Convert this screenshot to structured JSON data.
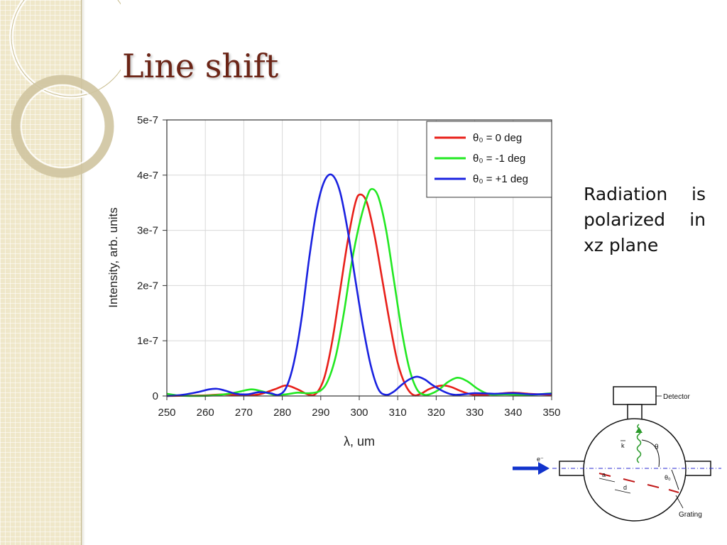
{
  "slide": {
    "title": "Line shift"
  },
  "text_block": {
    "line1": [
      "Radiation",
      "is"
    ],
    "line2": [
      "polarized",
      "in"
    ],
    "line3": "xz plane"
  },
  "diagram": {
    "detector_label": "Detector",
    "grating_label": "Grating",
    "electron_label": "e⁻",
    "k_label": "k",
    "theta_label": "θ",
    "theta0_label": "θ₀",
    "a_label": "a",
    "d_label": "d"
  },
  "chart_data": {
    "type": "line",
    "title": "",
    "xlabel": "λ, um",
    "ylabel": "Intensity, arb. units",
    "xlim": [
      250,
      350
    ],
    "ylim": [
      0,
      5e-07
    ],
    "xticks": [
      250,
      260,
      270,
      280,
      290,
      300,
      310,
      320,
      330,
      340,
      350
    ],
    "xtick_labels": [
      "250",
      "260",
      "270",
      "280",
      "290",
      "300",
      "310",
      "320",
      "330",
      "340",
      "350"
    ],
    "yticks": [
      0,
      1e-07,
      2e-07,
      3e-07,
      4e-07,
      5e-07
    ],
    "ytick_labels": [
      "0",
      "1e-7",
      "2e-7",
      "3e-7",
      "4e-7",
      "5e-7"
    ],
    "grid": true,
    "legend_position": "top-right",
    "series": [
      {
        "name": "θ₀ = 0 deg",
        "color": "#e8201a",
        "x": [
          250,
          255,
          260,
          265,
          270,
          274,
          278,
          281,
          284,
          287,
          289,
          291,
          293,
          295,
          297,
          299,
          300.3,
          302,
          304,
          306,
          308,
          310,
          312,
          314,
          316,
          318,
          320,
          322,
          324,
          326,
          328,
          330,
          333,
          336,
          340,
          344,
          350
        ],
        "y": [
          0,
          5e-10,
          1e-09,
          3e-09,
          1e-09,
          3e-09,
          1.2e-08,
          1.9e-08,
          1.2e-08,
          2e-09,
          6e-09,
          3.5e-08,
          1e-07,
          1.9e-07,
          2.8e-07,
          3.5e-07,
          3.65e-07,
          3.5e-07,
          2.9e-07,
          2.1e-07,
          1.3e-07,
          6e-08,
          2e-08,
          2e-09,
          4e-09,
          1.2e-08,
          1.7e-08,
          1.9e-08,
          1.6e-08,
          1e-08,
          5e-09,
          2e-09,
          2e-09,
          4e-09,
          6e-09,
          4e-09,
          2e-09
        ]
      },
      {
        "name": "θ₀ = -1 deg",
        "color": "#22e822",
        "x": [
          250,
          253,
          257,
          262,
          266,
          269,
          272,
          275,
          278,
          281,
          284,
          287,
          290,
          292,
          294,
          296,
          298,
          300,
          302,
          303.3,
          305,
          307,
          309,
          311,
          313,
          315,
          317,
          319,
          321,
          323,
          325.5,
          328,
          331,
          334,
          338,
          344,
          350
        ],
        "y": [
          4e-09,
          1e-09,
          0,
          1e-09,
          4e-09,
          8e-09,
          1.2e-08,
          8e-09,
          2e-09,
          3e-09,
          6e-09,
          5e-09,
          1e-08,
          3e-08,
          7.5e-08,
          1.5e-07,
          2.4e-07,
          3.1e-07,
          3.6e-07,
          3.75e-07,
          3.6e-07,
          3e-07,
          2.1e-07,
          1.2e-07,
          5e-08,
          1.2e-08,
          2e-09,
          5e-09,
          1.3e-08,
          2.5e-08,
          3.3e-08,
          2.7e-08,
          1.2e-08,
          3e-09,
          3e-09,
          2e-09,
          5e-09
        ]
      },
      {
        "name": "θ₀ = +1 deg",
        "color": "#1a22e0",
        "x": [
          250,
          254,
          258,
          261,
          263,
          265,
          268,
          271,
          274,
          277,
          279,
          281,
          283,
          285,
          287,
          289,
          291,
          293,
          295,
          297,
          299,
          301,
          303,
          305,
          307,
          309,
          311,
          313,
          315,
          317,
          319,
          322,
          325,
          330,
          335,
          340,
          345,
          350
        ],
        "y": [
          0,
          2e-09,
          7e-09,
          1.2e-08,
          1.3e-08,
          1e-08,
          4e-09,
          3e-09,
          7e-09,
          5e-09,
          2e-09,
          1.5e-08,
          6e-08,
          1.4e-07,
          2.5e-07,
          3.4e-07,
          3.9e-07,
          4e-07,
          3.7e-07,
          3e-07,
          2.1e-07,
          1.25e-07,
          5.5e-08,
          1.2e-08,
          2e-09,
          8e-09,
          2e-08,
          3e-08,
          3.5e-08,
          3e-08,
          2e-08,
          8e-09,
          2e-09,
          5e-09,
          4e-09,
          5e-09,
          3e-09,
          4e-09
        ]
      }
    ]
  }
}
